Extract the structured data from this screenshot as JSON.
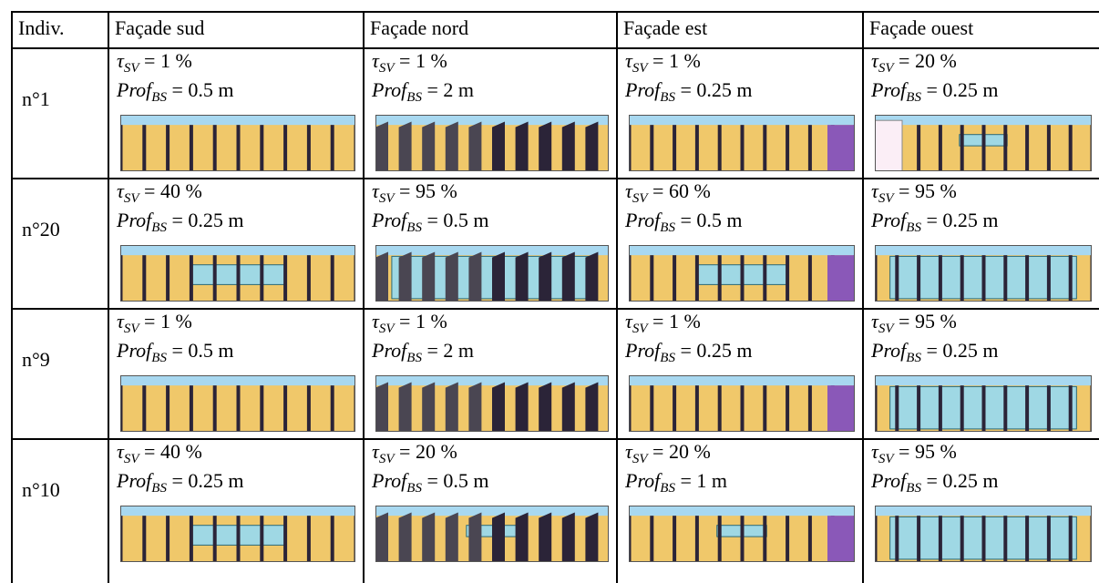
{
  "header": [
    "Indiv.",
    "Façade sud",
    "Façade nord",
    "Façade est",
    "Façade ouest"
  ],
  "symbols": {
    "tau": "τ",
    "tau_sub": "SV",
    "prof": "Prof",
    "prof_sub": "BS",
    "eq": "="
  },
  "rows": [
    {
      "indiv": "n°1",
      "cells": [
        {
          "tau": "1 %",
          "prof": "0.5 m"
        },
        {
          "tau": "1 %",
          "prof": "2 m"
        },
        {
          "tau": "1 %",
          "prof": "0.25 m"
        },
        {
          "tau": "20 %",
          "prof": "0.25 m"
        }
      ]
    },
    {
      "indiv": "n°20",
      "cells": [
        {
          "tau": "40 %",
          "prof": "0.25 m"
        },
        {
          "tau": "95 %",
          "prof": "0.5 m"
        },
        {
          "tau": "60 %",
          "prof": "0.5 m"
        },
        {
          "tau": "95 %",
          "prof": "0.25 m"
        }
      ]
    },
    {
      "indiv": "n°9",
      "cells": [
        {
          "tau": "1 %",
          "prof": "0.5 m"
        },
        {
          "tau": "1 %",
          "prof": "2 m"
        },
        {
          "tau": "1 %",
          "prof": "0.25 m"
        },
        {
          "tau": "95 %",
          "prof": "0.25 m"
        }
      ]
    },
    {
      "indiv": "n°10",
      "cells": [
        {
          "tau": "40 %",
          "prof": "0.25 m"
        },
        {
          "tau": "20 %",
          "prof": "0.5 m"
        },
        {
          "tau": "20 %",
          "prof": "1 m"
        },
        {
          "tau": "95 %",
          "prof": "0.25 m"
        }
      ]
    }
  ]
}
